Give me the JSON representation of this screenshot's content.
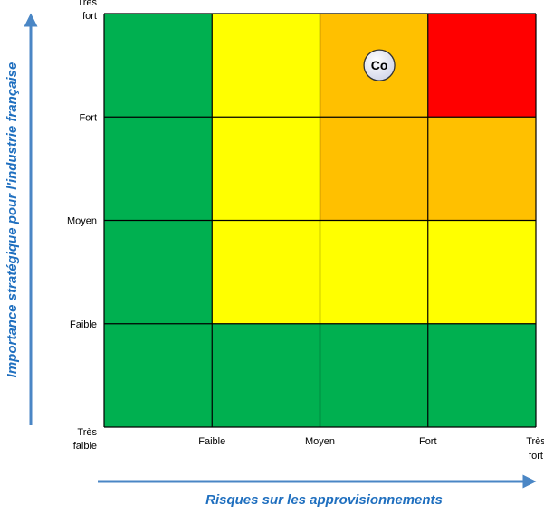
{
  "chart_data": {
    "type": "heatmap",
    "title": "",
    "xlabel": "Risques sur les approvisionnements",
    "ylabel": "Importance stratégique pour l'industrie française",
    "x_ticks": [
      "Faible",
      "Moyen",
      "Fort",
      "Très fort"
    ],
    "y_ticks": [
      "Très faible",
      "Faible",
      "Moyen",
      "Fort",
      "Très fort"
    ],
    "x_tick_lines": [
      [
        "Faible"
      ],
      [
        "Moyen"
      ],
      [
        "Fort"
      ],
      [
        "Très",
        "fort"
      ]
    ],
    "y_tick_lines": [
      [
        "Très",
        "faible"
      ],
      [
        "Faible"
      ],
      [
        "Moyen"
      ],
      [
        "Fort"
      ],
      [
        "Très",
        "fort"
      ]
    ],
    "grid": {
      "rows": 4,
      "cols": 4,
      "row_order": "top-to-bottom",
      "cells": [
        [
          "green",
          "yellow",
          "orange",
          "red"
        ],
        [
          "green",
          "yellow",
          "orange",
          "orange"
        ],
        [
          "green",
          "yellow",
          "yellow",
          "yellow"
        ],
        [
          "green",
          "green",
          "green",
          "green"
        ]
      ]
    },
    "colors": {
      "green": "#00b050",
      "yellow": "#ffff00",
      "orange": "#ffc000",
      "red": "#ff0000",
      "axis_title": "#1f6fbf",
      "arrow": "#4a86c5",
      "grid_line": "#000000",
      "bubble_fill": "#d0d4e8",
      "bubble_stroke": "#333333"
    },
    "points": [
      {
        "label": "Co",
        "x": 2.55,
        "y": 3.5
      }
    ]
  }
}
